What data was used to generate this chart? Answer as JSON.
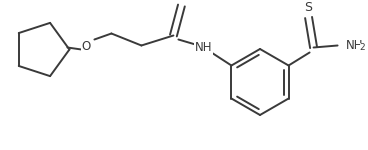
{
  "background": "#ffffff",
  "line_color": "#3a3a3a",
  "line_width": 1.4,
  "font_size": 8.5,
  "figsize": [
    3.68,
    1.5
  ],
  "dpi": 100,
  "labels": {
    "O": "O",
    "S": "S",
    "NH": "NH",
    "NH2": "NH2"
  }
}
